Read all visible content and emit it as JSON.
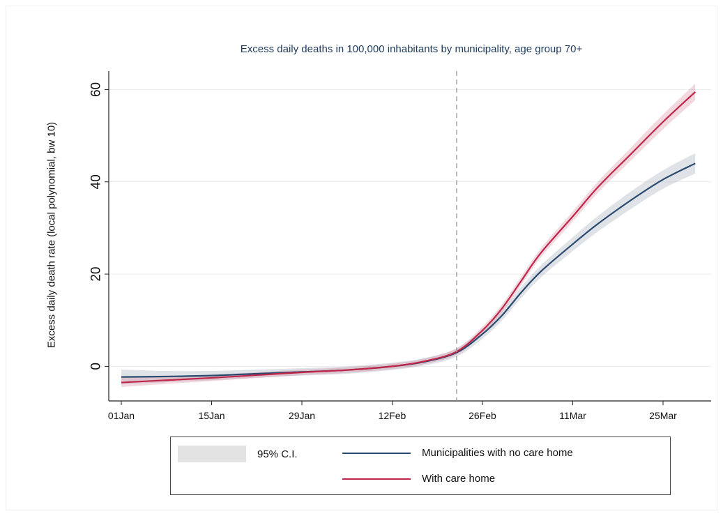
{
  "chart_data": {
    "type": "line",
    "title": "Excess daily deaths in 100,000 inhabitants by municipality, age group 70+",
    "xlabel": "",
    "ylabel": "Excess daily death rate (local polynomial, bw 10)",
    "x_ticks": [
      "01Jan",
      "15Jan",
      "29Jan",
      "12Feb",
      "26Feb",
      "11Mar",
      "25Mar"
    ],
    "y_ticks": [
      0,
      20,
      40,
      60
    ],
    "ylim": [
      -7.5,
      64
    ],
    "vertical_reference": "22Feb",
    "grid": true,
    "legend_position": "bottom",
    "legend": {
      "ci_label": "95% C.I.",
      "series_1_label": "Municipalities with no care home",
      "series_2_label": "With care home"
    },
    "x": [
      "01Jan",
      "08Jan",
      "15Jan",
      "22Jan",
      "29Jan",
      "05Feb",
      "12Feb",
      "17Feb",
      "22Feb",
      "26Feb",
      "29Feb",
      "03Mar",
      "06Mar",
      "11Mar",
      "15Mar",
      "20Mar",
      "25Mar",
      "30Mar"
    ],
    "series": [
      {
        "name": "Municipalities with no care home",
        "color": "#2b4a6f",
        "values": [
          -2.3,
          -2.2,
          -2.0,
          -1.6,
          -1.2,
          -0.8,
          0.0,
          1.0,
          3.0,
          7.0,
          11.0,
          16.0,
          20.5,
          26.5,
          31.0,
          36.0,
          40.5,
          44.0
        ],
        "ci_halfwidth": [
          1.6,
          1.2,
          1.0,
          0.9,
          0.8,
          0.8,
          0.8,
          0.8,
          0.9,
          1.0,
          1.1,
          1.2,
          1.3,
          1.5,
          1.7,
          1.9,
          2.0,
          2.2
        ]
      },
      {
        "name": "With care home",
        "color": "#c0264a",
        "values": [
          -3.5,
          -3.0,
          -2.5,
          -1.9,
          -1.3,
          -0.8,
          0.0,
          1.1,
          3.2,
          7.8,
          12.5,
          18.5,
          24.5,
          32.5,
          39.0,
          46.0,
          53.0,
          59.5
        ],
        "ci_halfwidth": [
          1.0,
          0.8,
          0.7,
          0.6,
          0.6,
          0.6,
          0.6,
          0.6,
          0.7,
          0.8,
          0.9,
          0.9,
          1.0,
          1.1,
          1.2,
          1.4,
          1.6,
          1.8
        ]
      }
    ]
  }
}
